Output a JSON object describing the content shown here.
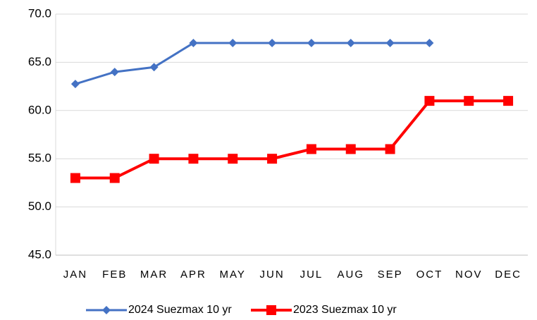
{
  "chart_data": {
    "type": "line",
    "categories": [
      "JAN",
      "FEB",
      "MAR",
      "APR",
      "MAY",
      "JUN",
      "JUL",
      "AUG",
      "SEP",
      "OCT",
      "NOV",
      "DEC"
    ],
    "series": [
      {
        "name": "2024 Suezmax 10 yr",
        "color": "#4472c4",
        "marker": "diamond",
        "values": [
          62.75,
          64,
          64.5,
          67,
          67,
          67,
          67,
          67,
          67,
          67,
          null,
          null
        ]
      },
      {
        "name": "2023 Suezmax 10 yr",
        "color": "#ff0000",
        "marker": "square",
        "values": [
          53,
          53,
          55,
          55,
          55,
          55,
          56,
          56,
          56,
          61,
          61,
          61
        ]
      }
    ],
    "ylim": [
      45,
      70
    ],
    "yticks": [
      {
        "value": 45,
        "label": "45.0"
      },
      {
        "value": 50,
        "label": "50.0"
      },
      {
        "value": 55,
        "label": "55.0"
      },
      {
        "value": 60,
        "label": "60.0"
      },
      {
        "value": 65,
        "label": "65.0"
      },
      {
        "value": 70,
        "label": "70.0"
      }
    ],
    "grid": true,
    "legend": "bottom"
  }
}
